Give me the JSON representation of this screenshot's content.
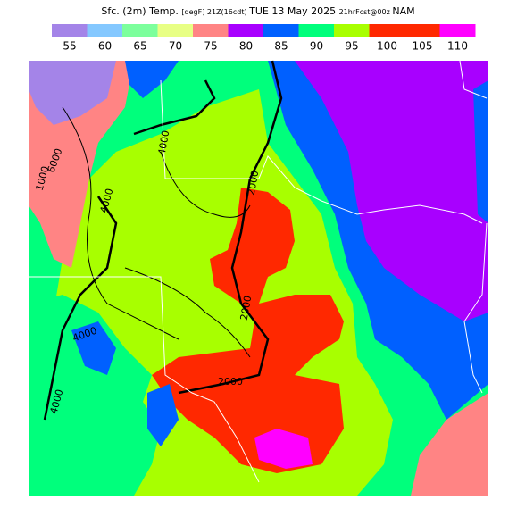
{
  "header": {
    "title_parts": [
      "Sfc. (2m) Temp.",
      "[degF]",
      "21Z(16cdt)",
      "TUE 13 May 2025",
      "21hrFcst@00z",
      "NAM"
    ]
  },
  "legend": {
    "items": [
      {
        "label": "55",
        "color": "#a484e8"
      },
      {
        "label": "60",
        "color": "#84c8ff"
      },
      {
        "label": "65",
        "color": "#7cff9c"
      },
      {
        "label": "70",
        "color": "#e8ff84"
      },
      {
        "label": "75",
        "color": "#ff8484"
      },
      {
        "label": "80",
        "color": "#a800ff"
      },
      {
        "label": "85",
        "color": "#0060ff"
      },
      {
        "label": "90",
        "color": "#00ff7c"
      },
      {
        "label": "95",
        "color": "#a8ff00"
      },
      {
        "label": "100",
        "color": "#ff2800"
      },
      {
        "label": "105",
        "color": "#ff2800"
      },
      {
        "label": "110",
        "color": "#ff00ff"
      }
    ]
  },
  "contour_labels": [
    "6000",
    "4000",
    "4000",
    "2000",
    "2000",
    "2000",
    "4000",
    "4000",
    "1000"
  ]
}
